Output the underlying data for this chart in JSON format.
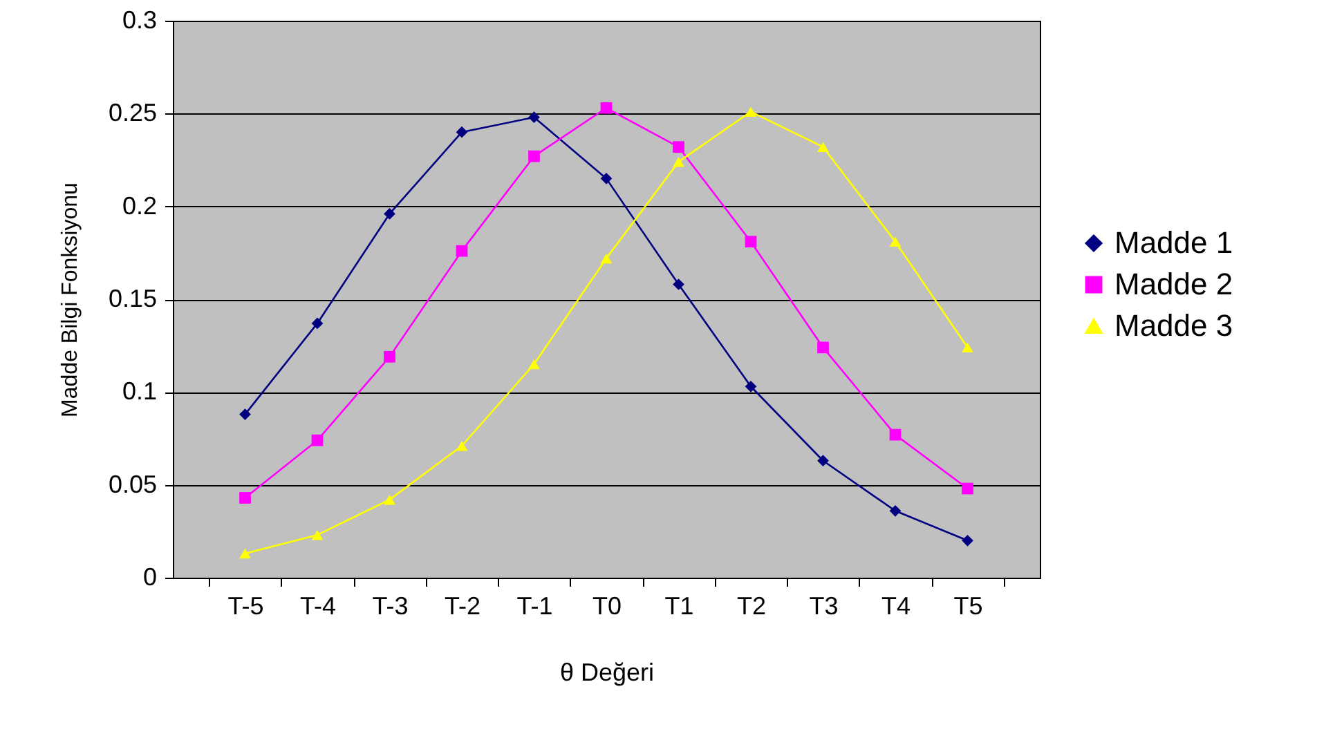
{
  "chart_data": {
    "type": "line",
    "xlabel": "θ Değeri",
    "ylabel": "Madde Bilgi Fonksiyonu",
    "categories": [
      "T-5",
      "T-4",
      "T-3",
      "T-2",
      "T-1",
      "T0",
      "T1",
      "T2",
      "T3",
      "T4",
      "T5"
    ],
    "series": [
      {
        "name": "Madde 1",
        "color": "#000080",
        "marker": "diamond",
        "values": [
          0.088,
          0.137,
          0.196,
          0.24,
          0.248,
          0.215,
          0.158,
          0.103,
          0.063,
          0.036,
          0.02
        ]
      },
      {
        "name": "Madde 2",
        "color": "#ff00ff",
        "marker": "square",
        "values": [
          0.043,
          0.074,
          0.119,
          0.176,
          0.227,
          0.253,
          0.232,
          0.181,
          0.124,
          0.077,
          0.048
        ]
      },
      {
        "name": "Madde 3",
        "color": "#ffff00",
        "marker": "triangle",
        "values": [
          0.013,
          0.023,
          0.042,
          0.071,
          0.115,
          0.172,
          0.224,
          0.251,
          0.232,
          0.181,
          0.124
        ]
      }
    ],
    "ylim": [
      0,
      0.3
    ],
    "yticks": [
      0,
      0.05,
      0.1,
      0.15,
      0.2,
      0.25,
      0.3
    ],
    "grid": "y",
    "legend": "right"
  }
}
